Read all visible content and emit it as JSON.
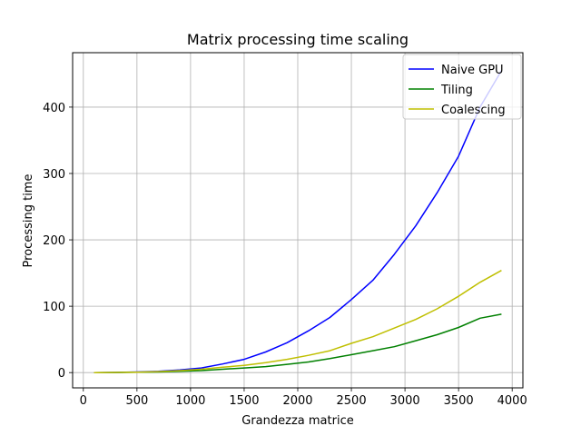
{
  "chart_data": {
    "type": "line",
    "title": "Matrix processing time scaling",
    "xlabel": "Grandezza matrice",
    "ylabel": "Processing time",
    "xlim": [
      -100,
      4100
    ],
    "ylim": [
      -23,
      482
    ],
    "xticks": [
      0,
      500,
      1000,
      1500,
      2000,
      2500,
      3000,
      3500,
      4000
    ],
    "yticks": [
      0,
      100,
      200,
      300,
      400
    ],
    "grid": true,
    "legend_position": "top-right",
    "x": [
      100,
      300,
      500,
      700,
      900,
      1100,
      1300,
      1500,
      1700,
      1900,
      2100,
      2300,
      2500,
      2700,
      2900,
      3100,
      3300,
      3500,
      3700,
      3900
    ],
    "series": [
      {
        "name": "Naive GPU",
        "color": "#0000ff",
        "values": [
          0,
          0.3,
          1,
          2,
          4,
          7,
          13,
          20,
          31,
          45,
          63,
          83,
          110,
          139,
          178,
          221,
          271,
          326,
          400,
          455
        ]
      },
      {
        "name": "Tiling",
        "color": "#008000",
        "values": [
          0,
          0.1,
          0.5,
          1,
          2,
          3,
          5,
          7,
          9,
          12.5,
          16,
          21,
          27,
          33,
          39,
          48,
          57,
          68,
          82,
          88
        ]
      },
      {
        "name": "Coalescing",
        "color": "#bfbf00",
        "values": [
          0,
          0.2,
          0.7,
          1.5,
          3,
          5,
          8,
          11,
          15,
          20,
          26,
          33,
          44,
          54,
          67,
          80,
          96,
          115,
          136,
          154
        ]
      }
    ]
  }
}
